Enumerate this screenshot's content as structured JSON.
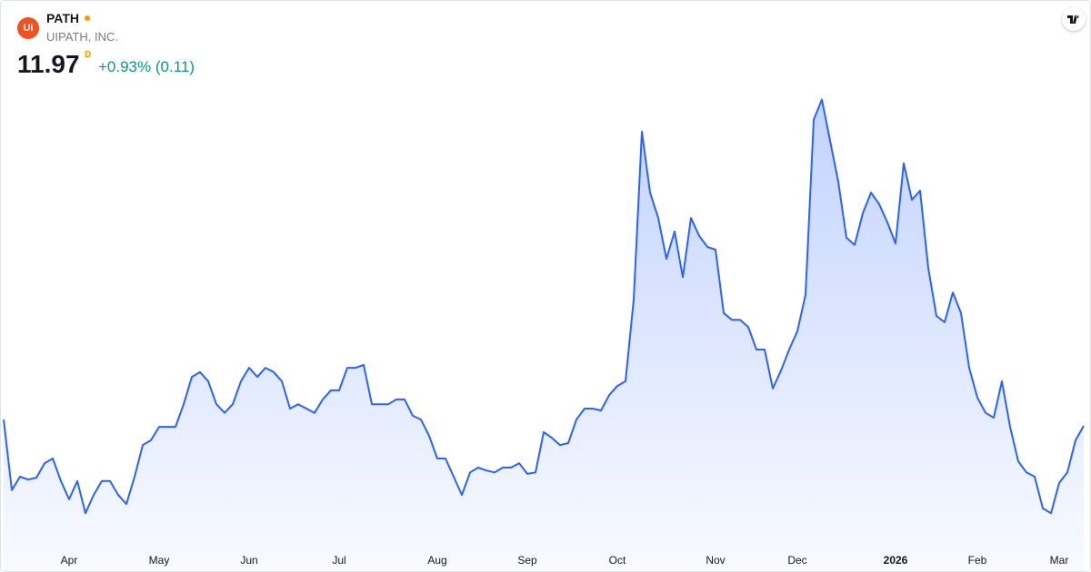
{
  "header": {
    "logo_text": "Ui",
    "symbol": "PATH",
    "company": "UIPATH, INC.",
    "price": "11.97",
    "price_suffix": "D",
    "change": "+0.93% (0.11)"
  },
  "chart_data": {
    "type": "area",
    "color": "#2962ff",
    "ylim": [
      9,
      19.5
    ],
    "categories": [
      null,
      null,
      null,
      null,
      null,
      null,
      null,
      null,
      "Apr",
      null,
      null,
      null,
      null,
      null,
      null,
      null,
      null,
      null,
      null,
      "May",
      null,
      null,
      null,
      null,
      null,
      null,
      null,
      null,
      null,
      null,
      "Jun",
      null,
      null,
      null,
      null,
      null,
      null,
      null,
      null,
      null,
      null,
      "Jul",
      null,
      null,
      null,
      null,
      null,
      null,
      null,
      null,
      null,
      null,
      null,
      "Aug",
      null,
      null,
      null,
      null,
      null,
      null,
      null,
      null,
      null,
      null,
      "Sep",
      null,
      null,
      null,
      null,
      null,
      null,
      null,
      null,
      null,
      null,
      "Oct",
      null,
      null,
      null,
      null,
      null,
      null,
      null,
      null,
      null,
      null,
      null,
      "Nov",
      null,
      null,
      null,
      null,
      null,
      null,
      null,
      null,
      null,
      "Dec",
      null,
      null,
      null,
      null,
      null,
      null,
      null,
      null,
      null,
      null,
      null,
      "2026",
      null,
      null,
      null,
      null,
      null,
      null,
      null,
      null,
      null,
      "Feb",
      null,
      null,
      null,
      null,
      null,
      null,
      null,
      null,
      null,
      "Mar",
      null,
      null,
      null
    ],
    "bold_categories": [
      "2026"
    ],
    "values": [
      12.1,
      10.63,
      10.91,
      10.85,
      10.89,
      11.19,
      11.29,
      10.82,
      10.44,
      10.82,
      10.15,
      10.53,
      10.82,
      10.82,
      10.53,
      10.34,
      10.91,
      11.57,
      11.67,
      11.95,
      11.95,
      11.95,
      12.42,
      12.99,
      13.09,
      12.9,
      12.42,
      12.24,
      12.42,
      12.9,
      13.18,
      12.99,
      13.18,
      13.09,
      12.9,
      12.33,
      12.42,
      12.33,
      12.24,
      12.52,
      12.71,
      12.71,
      13.18,
      13.18,
      13.24,
      12.42,
      12.42,
      12.42,
      12.52,
      12.52,
      12.18,
      12.1,
      11.76,
      11.29,
      11.29,
      10.91,
      10.53,
      11.0,
      11.1,
      11.04,
      11.0,
      11.1,
      11.1,
      11.19,
      10.97,
      11.0,
      11.84,
      11.72,
      11.57,
      11.61,
      12.1,
      12.33,
      12.33,
      12.29,
      12.61,
      12.8,
      12.9,
      14.6,
      18.1,
      16.83,
      16.3,
      15.45,
      16.02,
      15.07,
      16.3,
      15.93,
      15.7,
      15.64,
      14.32,
      14.18,
      14.18,
      14.03,
      13.56,
      13.56,
      12.75,
      13.12,
      13.56,
      13.94,
      14.7,
      18.35,
      18.77,
      17.91,
      17.06,
      15.89,
      15.74,
      16.4,
      16.83,
      16.59,
      16.21,
      15.77,
      17.44,
      16.68,
      16.87,
      15.26,
      14.26,
      14.13,
      14.75,
      14.32,
      13.18,
      12.56,
      12.24,
      12.14,
      12.9,
      11.95,
      11.23,
      11.0,
      10.91,
      10.25,
      10.15,
      10.78,
      11.0,
      11.67,
      11.97
    ]
  }
}
